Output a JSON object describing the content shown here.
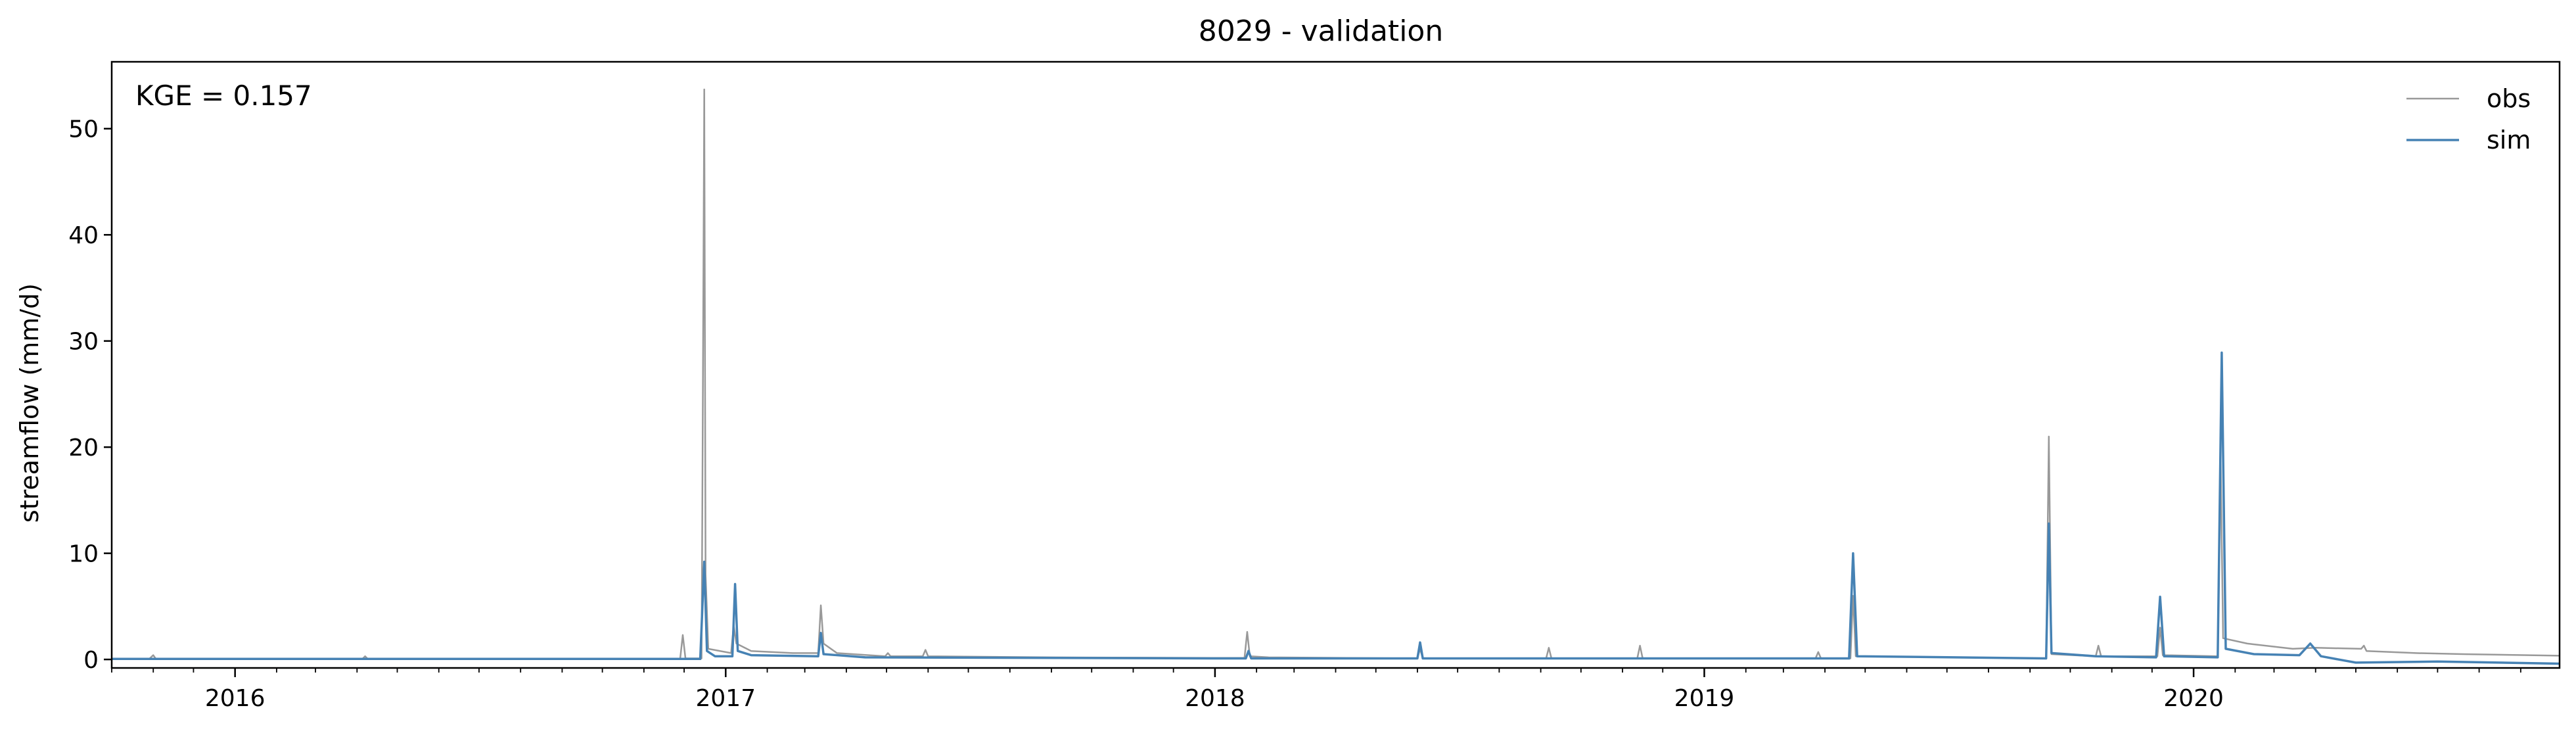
{
  "chart_data": {
    "type": "line",
    "title": "8029 - validation",
    "annotation": "KGE = 0.157",
    "xlabel": "",
    "ylabel": "streamflow (mm/d)",
    "xlim": [
      "2015-10-01",
      "2020-09-30"
    ],
    "ylim": [
      -0.8,
      56.3
    ],
    "yticks": [
      0,
      10,
      20,
      30,
      40,
      50
    ],
    "xticks": [
      {
        "date": "2016-01-01",
        "label": "2016"
      },
      {
        "date": "2017-01-01",
        "label": "2017"
      },
      {
        "date": "2018-01-01",
        "label": "2018"
      },
      {
        "date": "2019-01-01",
        "label": "2019"
      },
      {
        "date": "2020-01-01",
        "label": "2020"
      }
    ],
    "grid": false,
    "legend_position": "top-right",
    "series": [
      {
        "name": "obs",
        "color": "#999999",
        "points": [
          [
            "2015-10-01",
            0.05
          ],
          [
            "2015-10-29",
            0.05
          ],
          [
            "2015-11-01",
            0.4
          ],
          [
            "2015-11-03",
            0.05
          ],
          [
            "2016-04-05",
            0.05
          ],
          [
            "2016-04-07",
            0.3
          ],
          [
            "2016-04-09",
            0.05
          ],
          [
            "2016-11-28",
            0.05
          ],
          [
            "2016-11-30",
            2.3
          ],
          [
            "2016-12-02",
            0.1
          ],
          [
            "2016-12-14",
            0.1
          ],
          [
            "2016-12-15",
            25.0
          ],
          [
            "2016-12-16",
            53.7
          ],
          [
            "2016-12-17",
            8.0
          ],
          [
            "2016-12-19",
            1.0
          ],
          [
            "2017-01-05",
            0.6
          ],
          [
            "2017-01-07",
            3.2
          ],
          [
            "2017-01-09",
            1.5
          ],
          [
            "2017-01-20",
            0.8
          ],
          [
            "2017-02-20",
            0.6
          ],
          [
            "2017-03-11",
            0.6
          ],
          [
            "2017-03-13",
            5.1
          ],
          [
            "2017-03-15",
            1.5
          ],
          [
            "2017-03-25",
            0.6
          ],
          [
            "2017-04-30",
            0.3
          ],
          [
            "2017-05-02",
            0.6
          ],
          [
            "2017-05-04",
            0.3
          ],
          [
            "2017-05-28",
            0.3
          ],
          [
            "2017-05-30",
            0.9
          ],
          [
            "2017-06-01",
            0.3
          ],
          [
            "2017-09-01",
            0.2
          ],
          [
            "2017-12-31",
            0.15
          ],
          [
            "2018-01-23",
            0.15
          ],
          [
            "2018-01-25",
            2.6
          ],
          [
            "2018-01-27",
            0.3
          ],
          [
            "2018-02-10",
            0.2
          ],
          [
            "2018-06-01",
            0.1
          ],
          [
            "2018-06-03",
            1.0
          ],
          [
            "2018-06-05",
            0.1
          ],
          [
            "2018-09-05",
            0.1
          ],
          [
            "2018-09-07",
            1.1
          ],
          [
            "2018-09-09",
            0.1
          ],
          [
            "2018-11-12",
            0.1
          ],
          [
            "2018-11-14",
            1.3
          ],
          [
            "2018-11-16",
            0.1
          ],
          [
            "2019-03-25",
            0.1
          ],
          [
            "2019-03-27",
            0.7
          ],
          [
            "2019-03-29",
            0.1
          ],
          [
            "2019-04-20",
            0.1
          ],
          [
            "2019-04-22",
            6.0
          ],
          [
            "2019-04-24",
            0.3
          ],
          [
            "2019-09-13",
            0.1
          ],
          [
            "2019-09-15",
            21.0
          ],
          [
            "2019-09-17",
            0.5
          ],
          [
            "2019-10-20",
            0.3
          ],
          [
            "2019-10-22",
            1.3
          ],
          [
            "2019-10-24",
            0.3
          ],
          [
            "2019-12-05",
            0.3
          ],
          [
            "2019-12-07",
            3.0
          ],
          [
            "2019-12-09",
            0.4
          ],
          [
            "2020-01-19",
            0.3
          ],
          [
            "2020-01-21",
            20.0
          ],
          [
            "2020-01-23",
            2.0
          ],
          [
            "2020-02-10",
            1.5
          ],
          [
            "2020-03-15",
            1.0
          ],
          [
            "2020-04-01",
            1.1
          ],
          [
            "2020-05-05",
            1.0
          ],
          [
            "2020-05-07",
            1.3
          ],
          [
            "2020-05-09",
            0.8
          ],
          [
            "2020-06-15",
            0.6
          ],
          [
            "2020-07-20",
            0.5
          ],
          [
            "2020-09-30",
            0.35
          ]
        ]
      },
      {
        "name": "sim",
        "color": "#4682b4",
        "points": [
          [
            "2015-10-01",
            0.05
          ],
          [
            "2016-12-13",
            0.05
          ],
          [
            "2016-12-16",
            9.2
          ],
          [
            "2016-12-18",
            0.8
          ],
          [
            "2016-12-24",
            0.3
          ],
          [
            "2017-01-06",
            0.3
          ],
          [
            "2017-01-08",
            7.1
          ],
          [
            "2017-01-10",
            0.8
          ],
          [
            "2017-01-20",
            0.4
          ],
          [
            "2017-03-11",
            0.3
          ],
          [
            "2017-03-13",
            2.5
          ],
          [
            "2017-03-15",
            0.5
          ],
          [
            "2017-04-15",
            0.2
          ],
          [
            "2017-12-31",
            0.1
          ],
          [
            "2018-01-24",
            0.1
          ],
          [
            "2018-01-26",
            0.8
          ],
          [
            "2018-01-28",
            0.1
          ],
          [
            "2018-06-01",
            0.1
          ],
          [
            "2018-06-03",
            1.6
          ],
          [
            "2018-06-05",
            0.1
          ],
          [
            "2019-04-19",
            0.1
          ],
          [
            "2019-04-22",
            10.0
          ],
          [
            "2019-04-25",
            0.3
          ],
          [
            "2019-09-13",
            0.1
          ],
          [
            "2019-09-15",
            12.8
          ],
          [
            "2019-09-17",
            0.6
          ],
          [
            "2019-10-20",
            0.3
          ],
          [
            "2019-12-04",
            0.2
          ],
          [
            "2019-12-07",
            5.9
          ],
          [
            "2019-12-10",
            0.3
          ],
          [
            "2020-01-19",
            0.2
          ],
          [
            "2020-01-22",
            28.9
          ],
          [
            "2020-01-25",
            1.0
          ],
          [
            "2020-02-15",
            0.5
          ],
          [
            "2020-03-20",
            0.4
          ],
          [
            "2020-03-28",
            1.5
          ],
          [
            "2020-04-05",
            0.3
          ],
          [
            "2020-05-01",
            -0.3
          ],
          [
            "2020-07-01",
            -0.2
          ],
          [
            "2020-09-30",
            -0.4
          ]
        ]
      }
    ]
  }
}
